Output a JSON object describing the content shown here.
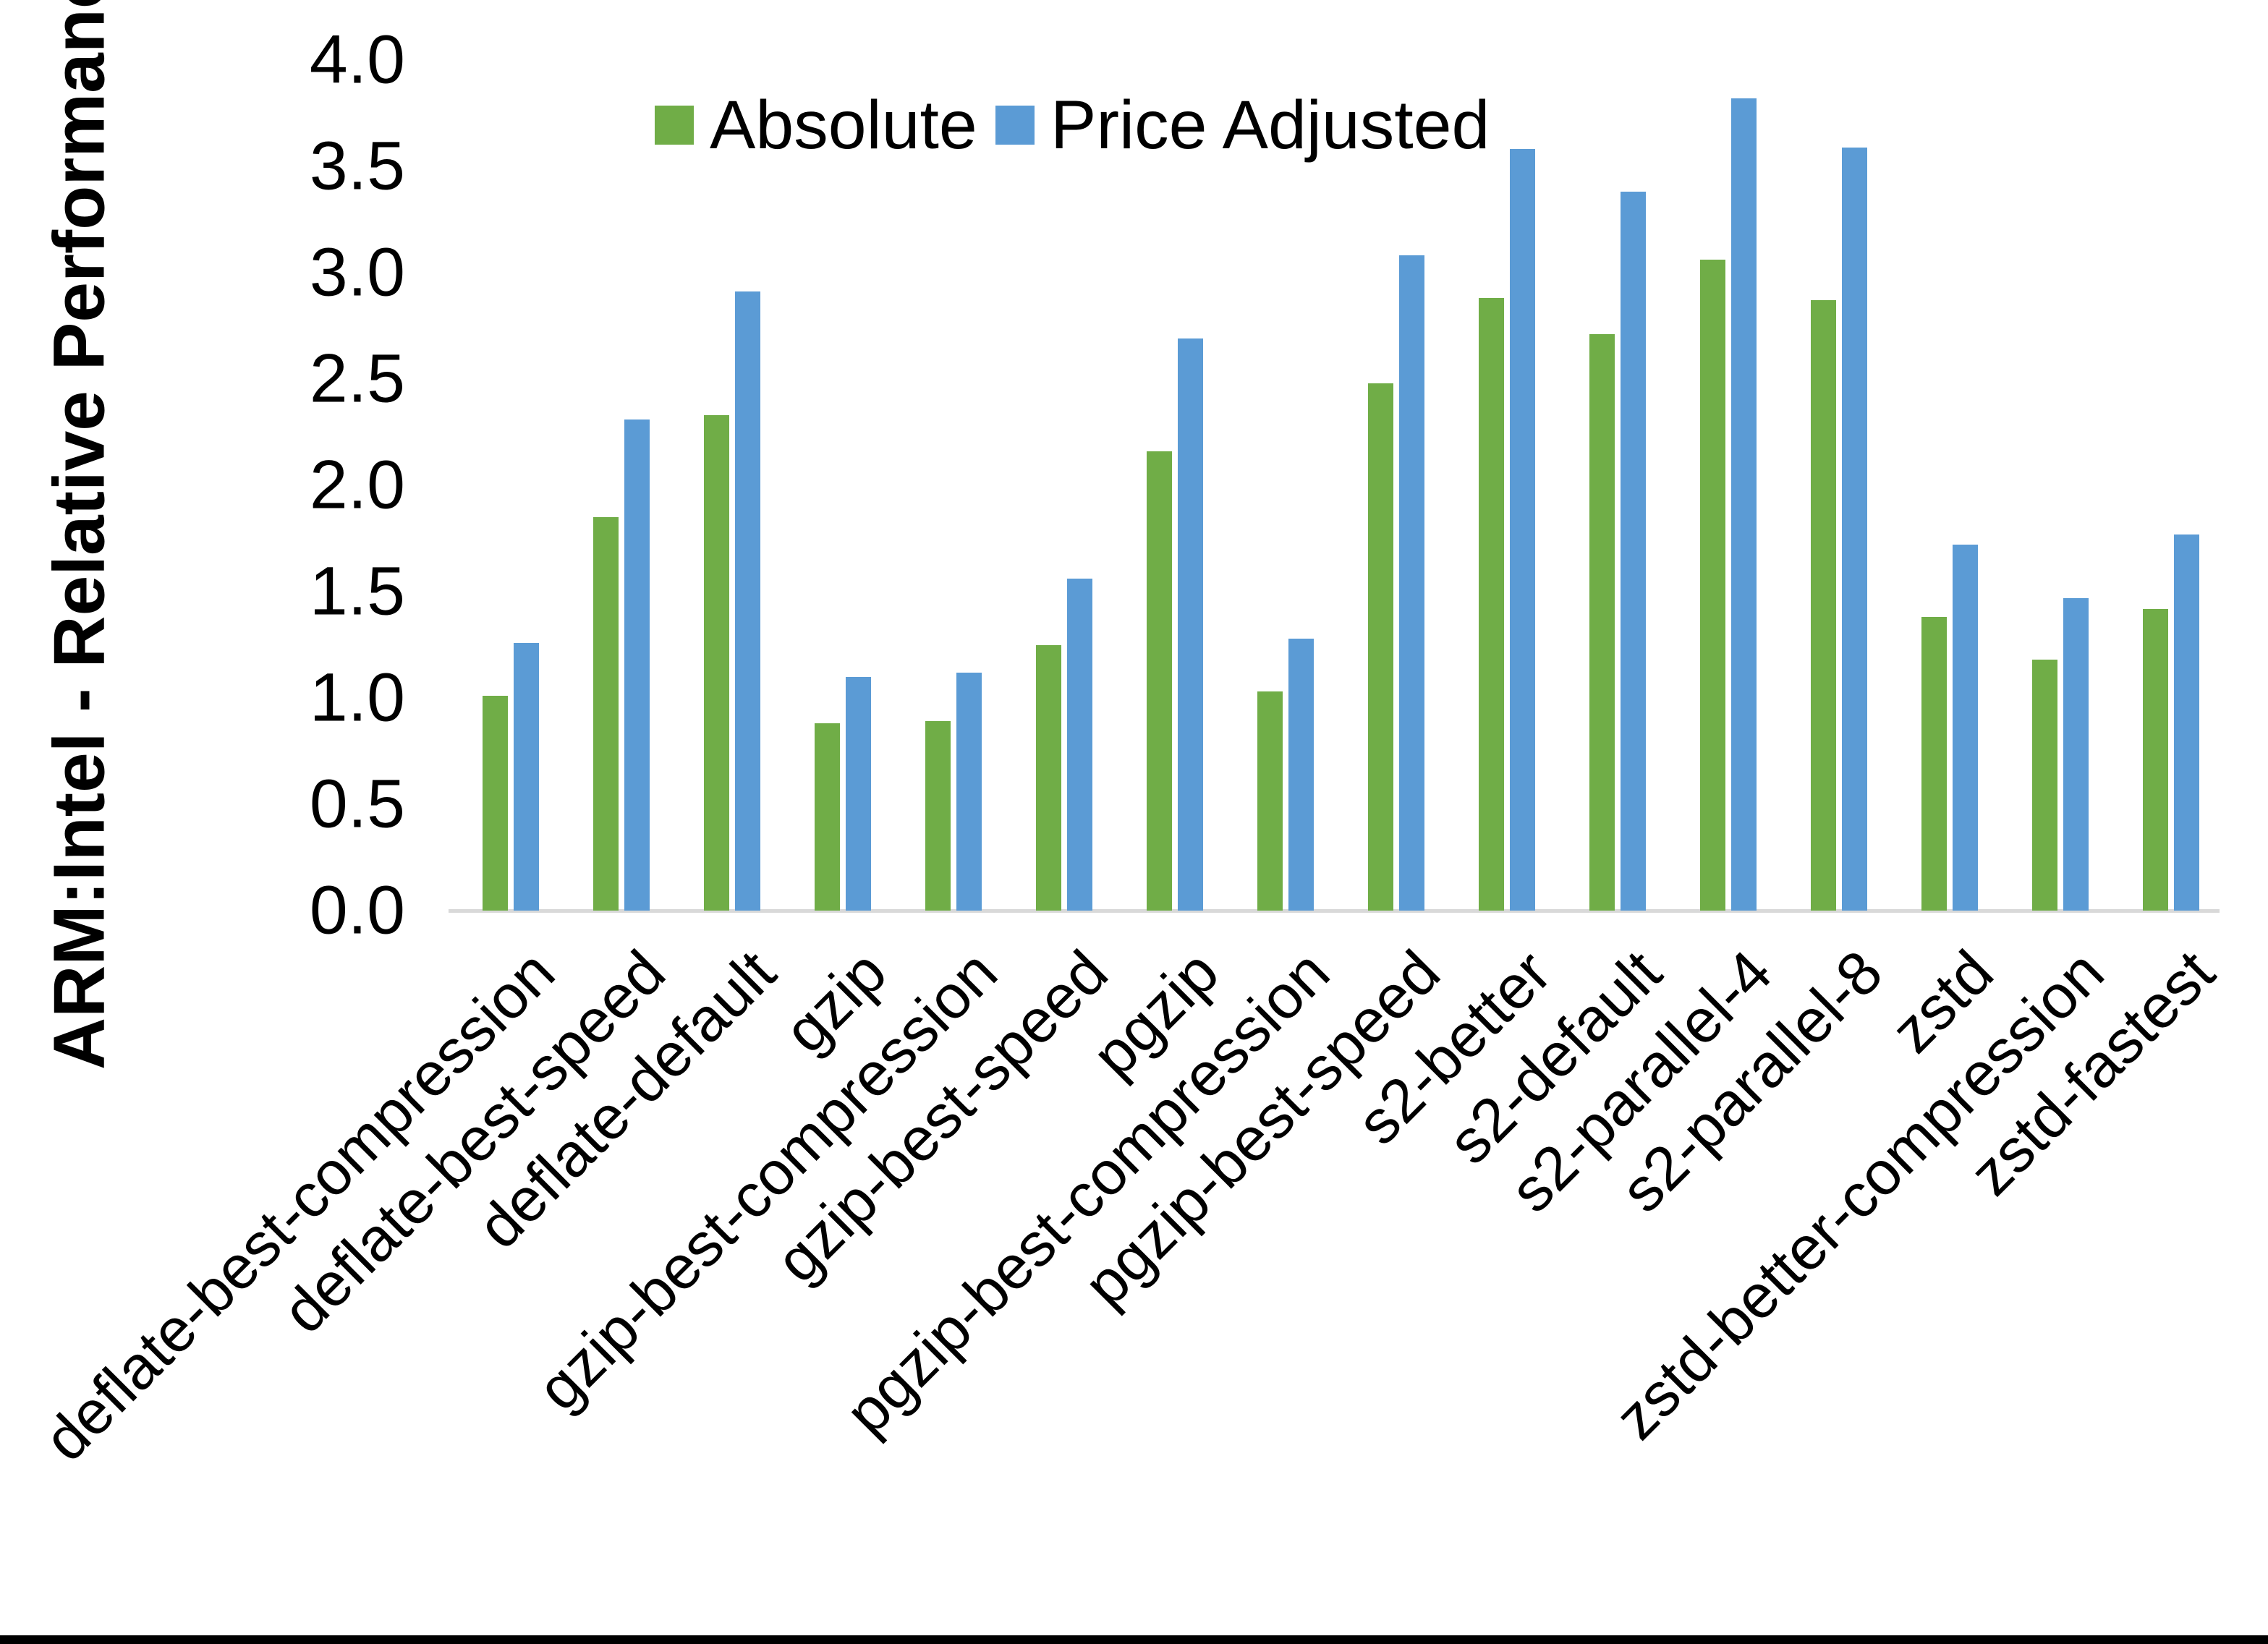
{
  "chart_data": {
    "type": "bar",
    "title": "",
    "xlabel": "",
    "ylabel": "ARM:Intel - Relative Performance",
    "ylim": [
      0.0,
      4.0
    ],
    "ytick_step": 0.5,
    "yticks": [
      "0.0",
      "0.5",
      "1.0",
      "1.5",
      "2.0",
      "2.5",
      "3.0",
      "3.5",
      "4.0"
    ],
    "grid": false,
    "legend_position": "top-center",
    "categories": [
      "deflate-best-compression",
      "deflate-best-speed",
      "deflate-default",
      "gzip",
      "gzip-best-compression",
      "gzip-best-speed",
      "pgzip",
      "pgzip-best-compression",
      "pgzip-best-speed",
      "s2-better",
      "s2-default",
      "s2-parallel-4",
      "s2-parallel-8",
      "zstd",
      "zstd-better-compression",
      "zstd-fastest"
    ],
    "series": [
      {
        "name": "Absolute",
        "color": "#70AD47",
        "values": [
          1.01,
          1.85,
          2.33,
          0.88,
          0.89,
          1.25,
          2.16,
          1.03,
          2.48,
          2.88,
          2.71,
          3.06,
          2.87,
          1.38,
          1.18,
          1.42
        ]
      },
      {
        "name": "Price Adjusted",
        "color": "#5B9BD5",
        "values": [
          1.26,
          2.31,
          2.91,
          1.1,
          1.12,
          1.56,
          2.69,
          1.28,
          3.08,
          3.58,
          3.38,
          3.82,
          3.59,
          1.72,
          1.47,
          1.77
        ]
      }
    ]
  },
  "colors": {
    "background": "#FFFFFF",
    "text": "#000000",
    "axis_line": "#D9D9D9",
    "bottom_border": "#000000",
    "series_absolute": "#70AD47",
    "series_price_adjusted": "#5B9BD5"
  }
}
